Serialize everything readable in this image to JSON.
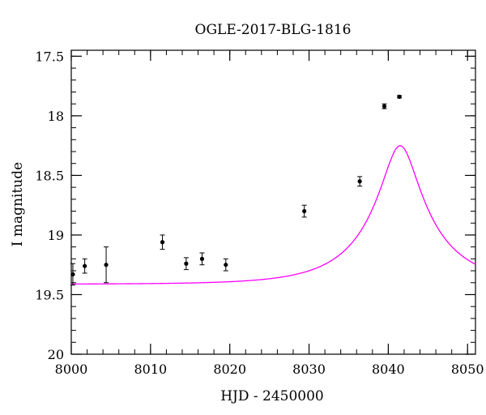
{
  "chart_data": {
    "type": "scatter",
    "title": "OGLE-2017-BLG-1816",
    "xlabel": "HJD - 2450000",
    "ylabel": "I magnitude",
    "xlim": [
      8000,
      8051
    ],
    "ylim": [
      20,
      17.45
    ],
    "y_inverted": true,
    "x_major_ticks": [
      8000,
      8010,
      8020,
      8030,
      8040,
      8050
    ],
    "x_tick_labels": [
      "8000",
      "8010",
      "8020",
      "8030",
      "8040",
      "8050"
    ],
    "x_minor_step": 2,
    "y_major_ticks": [
      17.5,
      18,
      18.5,
      19,
      19.5,
      20
    ],
    "y_tick_labels": [
      "17.5",
      "18",
      "18.5",
      "19",
      "19.5",
      "20"
    ],
    "y_minor_step": 0.1,
    "grid": false,
    "legend": "none",
    "series": [
      {
        "type": "scatter",
        "x": [
          8000.2,
          8001.7,
          8004.4,
          8011.5,
          8014.5,
          8016.5,
          8019.5,
          8029.4,
          8036.4,
          8039.5,
          8041.4
        ],
        "y": [
          19.33,
          19.26,
          19.25,
          19.06,
          19.24,
          19.2,
          19.25,
          18.8,
          18.55,
          17.92,
          17.84
        ],
        "yerr": [
          0.09,
          0.06,
          0.15,
          0.06,
          0.05,
          0.05,
          0.05,
          0.05,
          0.04,
          0.02,
          0.01
        ],
        "color": "#000000"
      },
      {
        "type": "line",
        "model": {
          "kind": "point-lens",
          "t0": 8041.5,
          "tE": 9.0,
          "u0": 0.237,
          "I_base": 19.4135,
          "blend_fraction": 0.58
        },
        "color": "#ff00ff"
      }
    ]
  }
}
